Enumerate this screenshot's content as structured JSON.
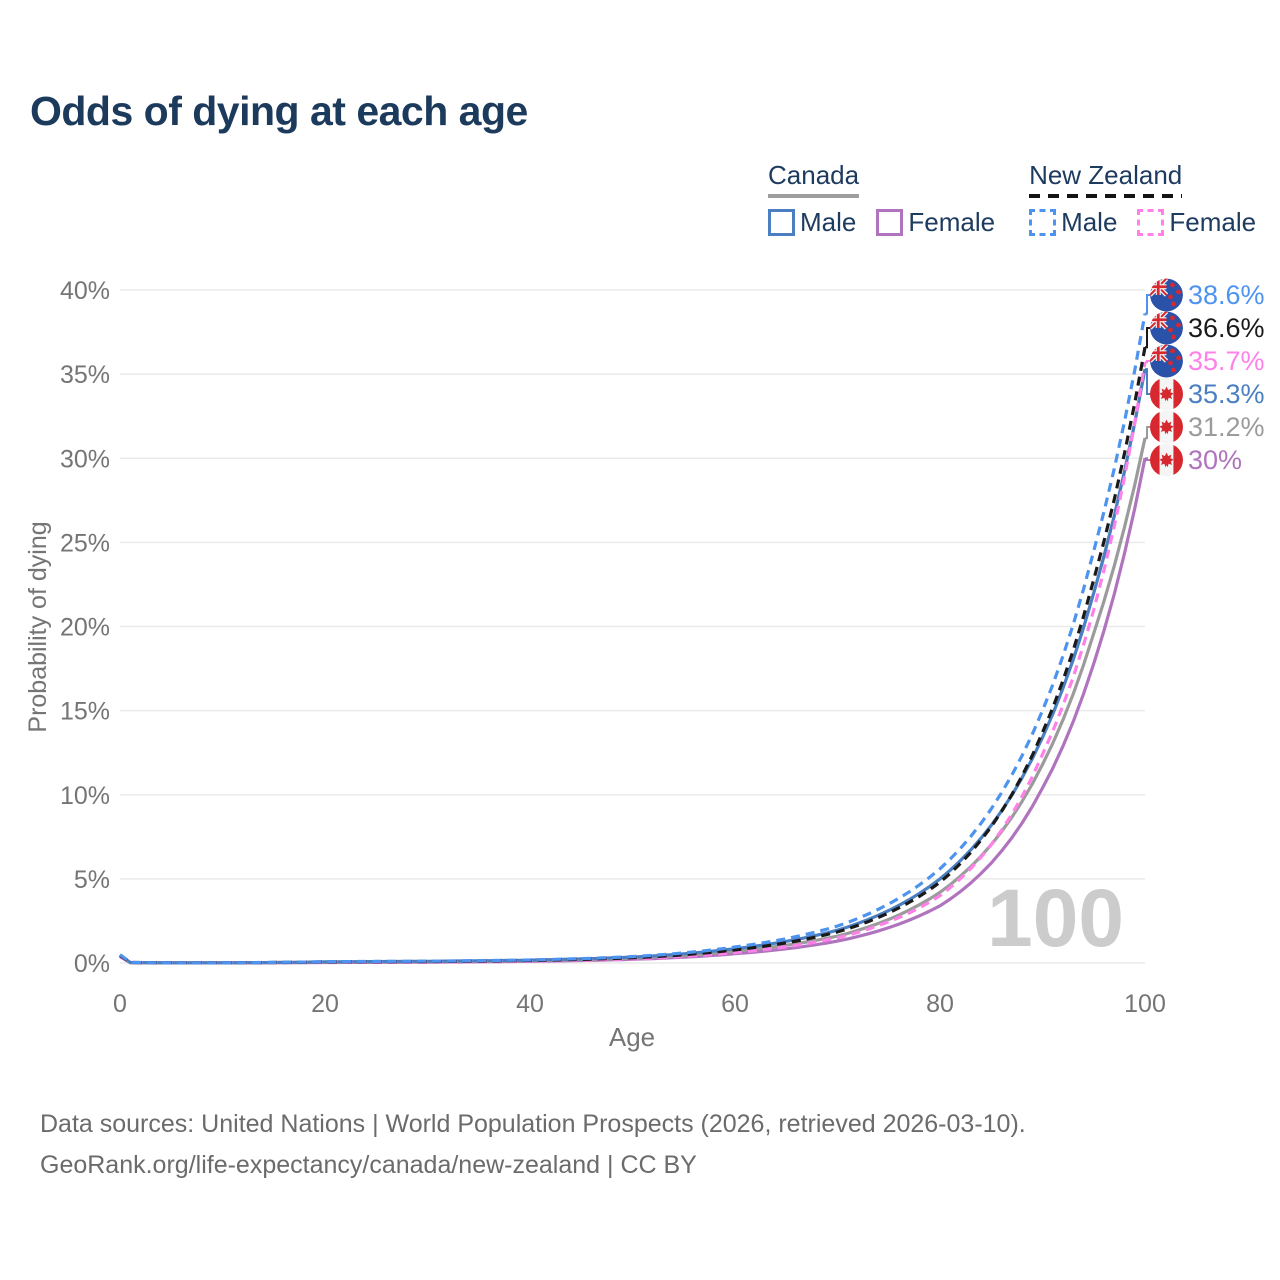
{
  "title": "Odds of dying at each age",
  "legend": {
    "groups": [
      {
        "label": "Canada",
        "line_style": "solid",
        "line_color": "#9e9e9e",
        "items": [
          {
            "label": "Male",
            "color": "#4a7fc1"
          },
          {
            "label": "Female",
            "color": "#b073bd"
          }
        ]
      },
      {
        "label": "New Zealand",
        "line_style": "dashed",
        "line_color": "#141414",
        "items": [
          {
            "label": "Male",
            "color": "#4d93f0"
          },
          {
            "label": "Female",
            "color": "#ff80e8"
          }
        ]
      }
    ]
  },
  "chart_data": {
    "type": "line",
    "title": "Odds of dying at each age",
    "xlabel": "Age",
    "ylabel": "Probability of dying",
    "xlim": [
      0,
      100
    ],
    "ylim": [
      0,
      40
    ],
    "x_ticks": [
      0,
      20,
      40,
      60,
      80,
      100
    ],
    "y_ticks": [
      0,
      5,
      10,
      15,
      20,
      25,
      30,
      35,
      40
    ],
    "y_tick_suffix": "%",
    "grid": "horizontal",
    "legend_position": "top-right",
    "watermark": "100",
    "sample_ages": [
      0,
      1,
      5,
      10,
      20,
      30,
      40,
      50,
      60,
      70,
      80,
      90,
      95,
      100
    ],
    "series": [
      {
        "id": "nz-male",
        "country": "New Zealand",
        "sex": "Male",
        "color": "#4d93f0",
        "dashed": true,
        "flag": "nz",
        "end_label": "38.6%",
        "value_at_100": 38.6,
        "values": [
          0.5,
          0.035,
          0.012,
          0.014,
          0.08,
          0.11,
          0.18,
          0.38,
          0.95,
          2.2,
          5.6,
          15.0,
          24.5,
          38.6
        ]
      },
      {
        "id": "nz-both",
        "country": "New Zealand",
        "sex": "Both sexes",
        "color": "#1a1a1a",
        "dashed": true,
        "flag": "nz",
        "end_label": "36.6%",
        "value_at_100": 36.6,
        "values": [
          0.45,
          0.032,
          0.01,
          0.012,
          0.06,
          0.085,
          0.15,
          0.31,
          0.78,
          1.85,
          4.8,
          13.7,
          22.8,
          36.6
        ]
      },
      {
        "id": "nz-female",
        "country": "New Zealand",
        "sex": "Female",
        "color": "#ff80e8",
        "dashed": true,
        "flag": "nz",
        "end_label": "35.7%",
        "value_at_100": 35.7,
        "values": [
          0.4,
          0.03,
          0.009,
          0.011,
          0.035,
          0.055,
          0.11,
          0.25,
          0.62,
          1.5,
          4.0,
          12.4,
          21.0,
          35.7
        ]
      },
      {
        "id": "ca-male",
        "country": "Canada",
        "sex": "Male",
        "color": "#4a7fc1",
        "dashed": false,
        "flag": "ca",
        "end_label": "35.3%",
        "value_at_100": 35.3,
        "values": [
          0.45,
          0.03,
          0.01,
          0.012,
          0.07,
          0.1,
          0.17,
          0.35,
          0.85,
          1.95,
          5.0,
          13.4,
          22.0,
          35.3
        ]
      },
      {
        "id": "ca-both",
        "country": "Canada",
        "sex": "Both sexes",
        "color": "#9b9b9b",
        "dashed": false,
        "flag": "ca",
        "end_label": "31.2%",
        "value_at_100": 31.2,
        "values": [
          0.42,
          0.028,
          0.009,
          0.011,
          0.05,
          0.08,
          0.14,
          0.28,
          0.7,
          1.6,
          4.2,
          11.8,
          19.6,
          31.2
        ]
      },
      {
        "id": "ca-female",
        "country": "Canada",
        "sex": "Female",
        "color": "#b073bd",
        "dashed": false,
        "flag": "ca",
        "end_label": "30%",
        "value_at_100": 30.0,
        "values": [
          0.38,
          0.025,
          0.008,
          0.01,
          0.03,
          0.05,
          0.1,
          0.22,
          0.55,
          1.3,
          3.4,
          10.4,
          17.8,
          30.0
        ]
      }
    ],
    "flag_colors": {
      "nz_blue": "#2a52a8",
      "flag_red": "#d7282f",
      "flag_white": "#f5f5f5"
    }
  },
  "footer": {
    "line1": "Data sources: United Nations | World Population Prospects (2026, retrieved 2026-03-10).",
    "line2": "GeoRank.org/life-expectancy/canada/new-zealand | CC BY"
  }
}
